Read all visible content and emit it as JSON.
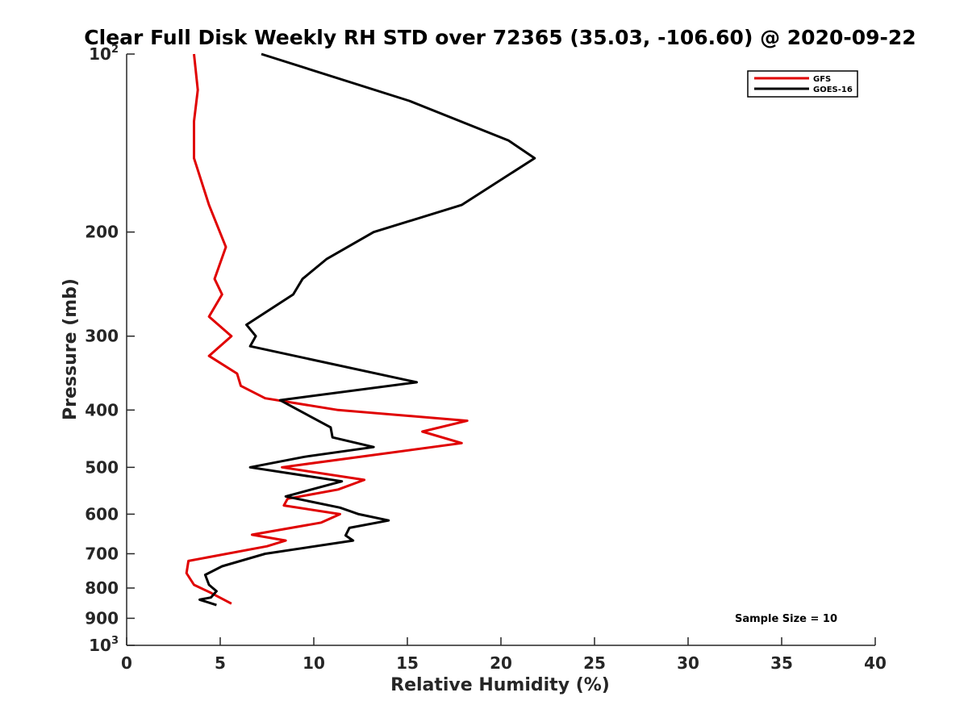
{
  "chart_data": {
    "type": "line",
    "title": "Clear Full Disk Weekly RH STD over 72365 (35.03, -106.60) @ 2020-09-22",
    "xlabel": "Relative Humidity (%)",
    "ylabel": "Pressure (mb)",
    "xlim": [
      0,
      40
    ],
    "ylim": [
      100,
      1000
    ],
    "y_scale": "log",
    "y_reversed": true,
    "x_ticks": [
      0,
      5,
      10,
      15,
      20,
      25,
      30,
      35,
      40
    ],
    "y_ticks": [
      {
        "value": 100,
        "base": "10",
        "exp": "2"
      },
      {
        "value": 200,
        "base": "200",
        "exp": ""
      },
      {
        "value": 300,
        "base": "300",
        "exp": ""
      },
      {
        "value": 400,
        "base": "400",
        "exp": ""
      },
      {
        "value": 500,
        "base": "500",
        "exp": ""
      },
      {
        "value": 600,
        "base": "600",
        "exp": ""
      },
      {
        "value": 700,
        "base": "700",
        "exp": ""
      },
      {
        "value": 800,
        "base": "800",
        "exp": ""
      },
      {
        "value": 900,
        "base": "900",
        "exp": ""
      },
      {
        "value": 1000,
        "base": "10",
        "exp": "3"
      }
    ],
    "grid": false,
    "legend_position": "top-right",
    "annotation": "Sample Size = 10",
    "series": [
      {
        "name": "GFS",
        "color": "#e00000",
        "points": [
          [
            3.6,
            100
          ],
          [
            3.8,
            115
          ],
          [
            3.6,
            130
          ],
          [
            3.6,
            150
          ],
          [
            4.4,
            180
          ],
          [
            5.3,
            212
          ],
          [
            4.7,
            240
          ],
          [
            5.1,
            255
          ],
          [
            4.4,
            278
          ],
          [
            5.6,
            300
          ],
          [
            4.4,
            324
          ],
          [
            5.9,
            347
          ],
          [
            6.1,
            364
          ],
          [
            7.4,
            382
          ],
          [
            11.3,
            400
          ],
          [
            18.2,
            417
          ],
          [
            15.8,
            435
          ],
          [
            17.9,
            455
          ],
          [
            8.3,
            500
          ],
          [
            12.7,
            525
          ],
          [
            11.3,
            545
          ],
          [
            8.6,
            565
          ],
          [
            8.4,
            580
          ],
          [
            11.4,
            600
          ],
          [
            10.4,
            620
          ],
          [
            6.7,
            650
          ],
          [
            8.5,
            665
          ],
          [
            7.5,
            680
          ],
          [
            3.3,
            720
          ],
          [
            3.2,
            755
          ],
          [
            3.6,
            790
          ],
          [
            4.5,
            815
          ],
          [
            5.6,
            850
          ]
        ]
      },
      {
        "name": "GOES-16",
        "color": "#000000",
        "points": [
          [
            7.2,
            100
          ],
          [
            15.1,
            120
          ],
          [
            20.4,
            140
          ],
          [
            21.8,
            150
          ],
          [
            17.9,
            180
          ],
          [
            13.2,
            200
          ],
          [
            10.7,
            222
          ],
          [
            9.4,
            240
          ],
          [
            8.9,
            255
          ],
          [
            6.4,
            287
          ],
          [
            6.9,
            300
          ],
          [
            6.6,
            312
          ],
          [
            15.5,
            359
          ],
          [
            8.2,
            385
          ],
          [
            10.9,
            428
          ],
          [
            11.0,
            445
          ],
          [
            13.2,
            462
          ],
          [
            9.5,
            480
          ],
          [
            6.6,
            500
          ],
          [
            11.5,
            528
          ],
          [
            8.5,
            560
          ],
          [
            11.4,
            585
          ],
          [
            12.4,
            600
          ],
          [
            14.0,
            615
          ],
          [
            11.9,
            633
          ],
          [
            11.7,
            652
          ],
          [
            12.1,
            665
          ],
          [
            7.4,
            700
          ],
          [
            5.1,
            735
          ],
          [
            4.2,
            760
          ],
          [
            4.4,
            790
          ],
          [
            4.8,
            810
          ],
          [
            4.5,
            830
          ],
          [
            3.9,
            837
          ],
          [
            4.8,
            855
          ]
        ]
      }
    ]
  }
}
